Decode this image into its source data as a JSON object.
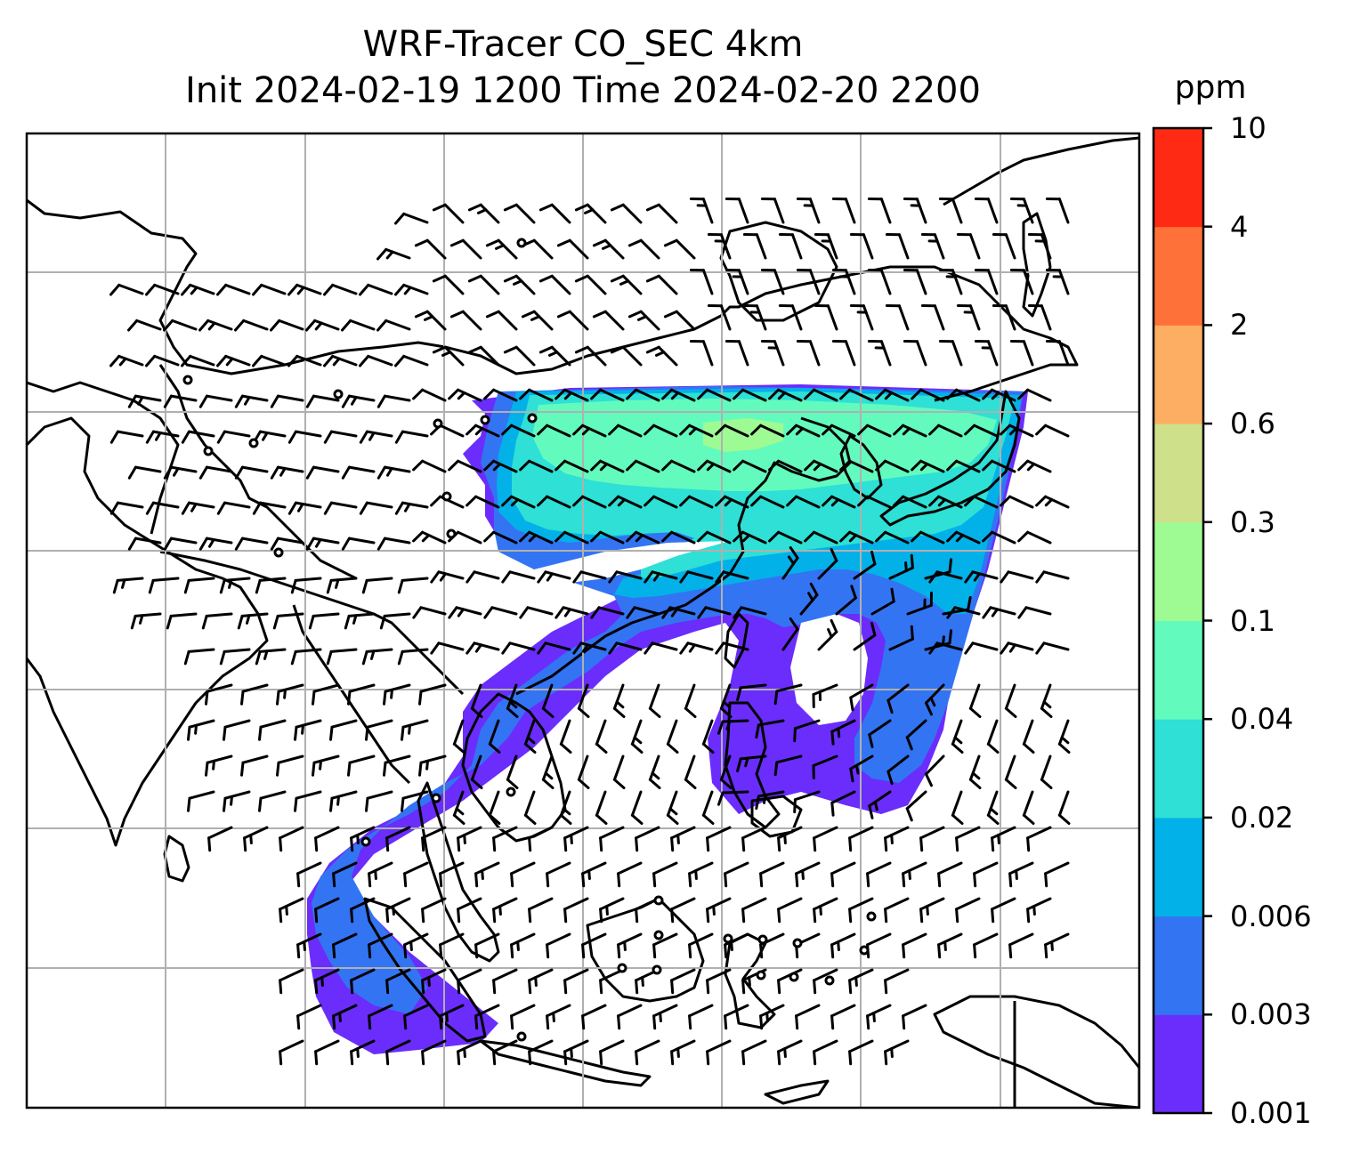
{
  "title": {
    "line1": "WRF-Tracer CO_SEC 4km",
    "line2": "Init 2024-02-19 1200 Time 2024-02-20 2200"
  },
  "colorbar": {
    "unit": "ppm",
    "levels": [
      "0.001",
      "0.003",
      "0.006",
      "0.02",
      "0.04",
      "0.1",
      "0.3",
      "0.6",
      "2",
      "4",
      "10"
    ],
    "colors": [
      "#6a2dfb",
      "#3374f3",
      "#03b1e9",
      "#2ee0d5",
      "#63fbbd",
      "#9efb93",
      "#cee18a",
      "#fdae62",
      "#fe7239",
      "#fe2a14"
    ]
  },
  "map": {
    "gridlines": true,
    "coastline_color": "#000000",
    "tracer_fill_levels_shown": [
      "0.001",
      "0.003",
      "0.006",
      "0.02",
      "0.04",
      "0.1"
    ],
    "wind_barb_color": "#000000",
    "calm_marker": "circle"
  }
}
